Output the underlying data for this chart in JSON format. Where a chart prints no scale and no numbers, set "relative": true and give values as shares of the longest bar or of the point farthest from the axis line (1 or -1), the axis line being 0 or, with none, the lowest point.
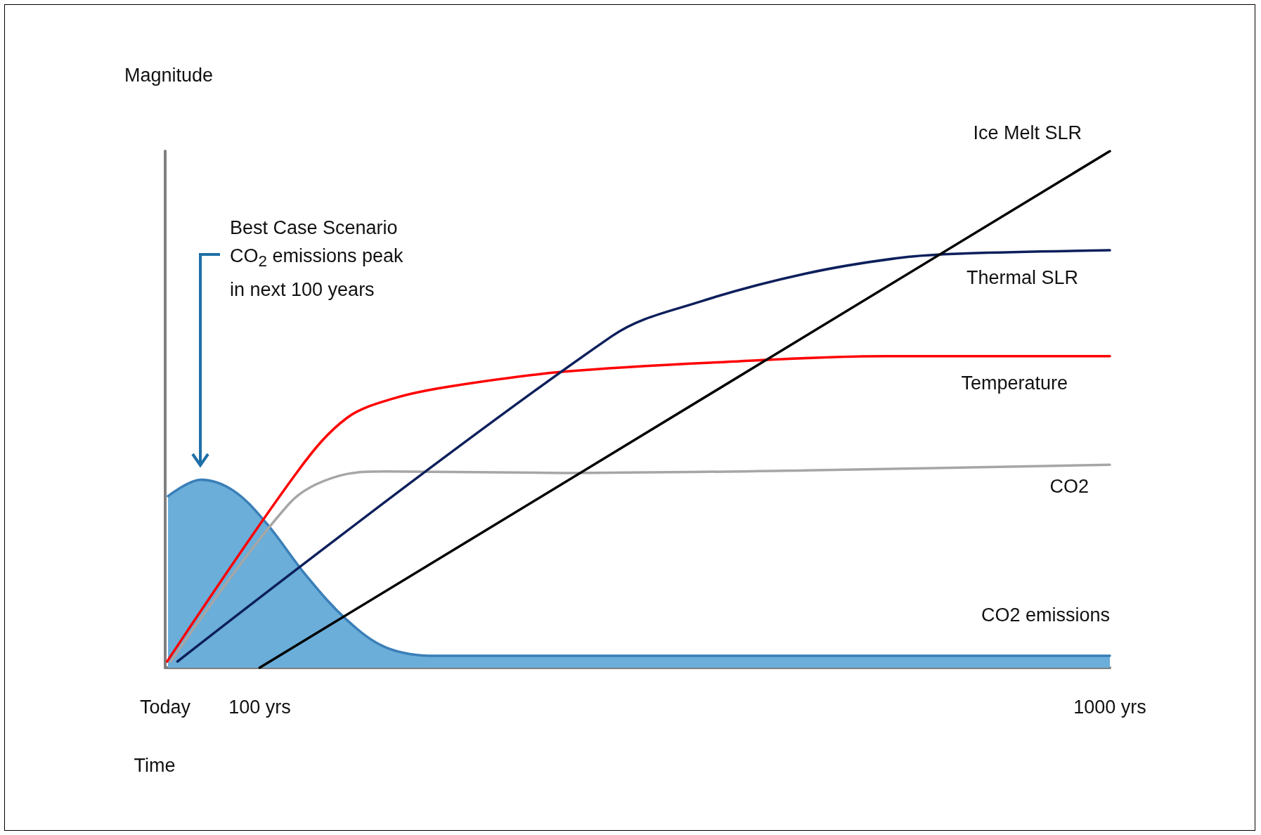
{
  "chart_data": {
    "type": "line",
    "relative": true,
    "xlabel": "Time",
    "ylabel": "Magnitude",
    "xlim": [
      0,
      1000
    ],
    "xticks": [
      {
        "value": 0,
        "label": "Today"
      },
      {
        "value": 100,
        "label": "100 yrs"
      },
      {
        "value": 1000,
        "label": "1000 yrs"
      }
    ],
    "annotations": [
      "Best Case Scenario\nCO$_{2}$ emissions peak\nin next 100 years"
    ],
    "grid": false,
    "legend": false,
    "marker": "none",
    "line_style": "solid",
    "series": [
      {
        "name": "CO2 emissions",
        "type": "area",
        "color": "#3a7fb8",
        "x": [
          3,
          38,
          72,
          107,
          149,
          192,
          234,
          286,
          507,
          1000
        ],
        "values": [
          0.332,
          0.364,
          0.343,
          0.28,
          0.179,
          0.093,
          0.039,
          0.023,
          0.023,
          0.023
        ]
      },
      {
        "name": "CO2",
        "color": "#a6a6a6",
        "x": [
          6,
          132,
          183,
          234,
          422,
          678,
          1000
        ],
        "values": [
          0.012,
          0.319,
          0.371,
          0.38,
          0.377,
          0.382,
          0.393
        ]
      },
      {
        "name": "Temperature",
        "color": "#ff0000",
        "x": [
          2,
          141,
          192,
          243,
          303,
          422,
          593,
          763,
          1000
        ],
        "values": [
          0.012,
          0.382,
          0.483,
          0.522,
          0.545,
          0.573,
          0.592,
          0.603,
          0.603
        ]
      },
      {
        "name": "Thermal SLR",
        "color": "#0d1f5c",
        "x": [
          13,
          473,
          567,
          678,
          780,
          848,
          1000
        ],
        "values": [
          0.012,
          0.642,
          0.709,
          0.763,
          0.794,
          0.802,
          0.808
        ]
      },
      {
        "name": "Ice Melt SLR",
        "color": "#000000",
        "x": [
          100,
          1000
        ],
        "values": [
          0,
          1
        ]
      }
    ]
  }
}
